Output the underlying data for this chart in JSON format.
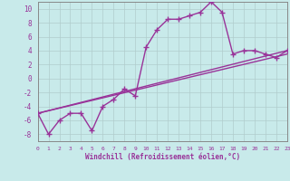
{
  "xlabel": "Windchill (Refroidissement éolien,°C)",
  "background_color": "#c8eaea",
  "grid_color": "#b0cccc",
  "line_color": "#993399",
  "xlim": [
    0,
    23
  ],
  "ylim": [
    -9,
    11
  ],
  "xticks": [
    0,
    1,
    2,
    3,
    4,
    5,
    6,
    7,
    8,
    9,
    10,
    11,
    12,
    13,
    14,
    15,
    16,
    17,
    18,
    19,
    20,
    21,
    22,
    23
  ],
  "yticks": [
    -8,
    -6,
    -4,
    -2,
    0,
    2,
    4,
    6,
    8,
    10
  ],
  "series1_x": [
    0,
    1,
    2,
    3,
    4,
    5,
    6,
    7,
    8,
    9,
    10,
    11,
    12,
    13,
    14,
    15,
    16,
    17,
    18,
    19,
    20,
    21,
    22,
    23
  ],
  "series1_y": [
    -5,
    -8,
    -6,
    -5,
    -5,
    -7.5,
    -4,
    -3,
    -1.5,
    -2.5,
    4.5,
    7,
    8.5,
    8.5,
    9,
    9.5,
    11,
    9.5,
    3.5,
    4,
    4,
    3.5,
    3,
    4
  ],
  "series2_x": [
    0,
    23
  ],
  "series2_y": [
    -5,
    4
  ],
  "series3_x": [
    0,
    23
  ],
  "series3_y": [
    -5,
    3.5
  ],
  "marker": "+",
  "markersize": 4,
  "linewidth": 1.0
}
